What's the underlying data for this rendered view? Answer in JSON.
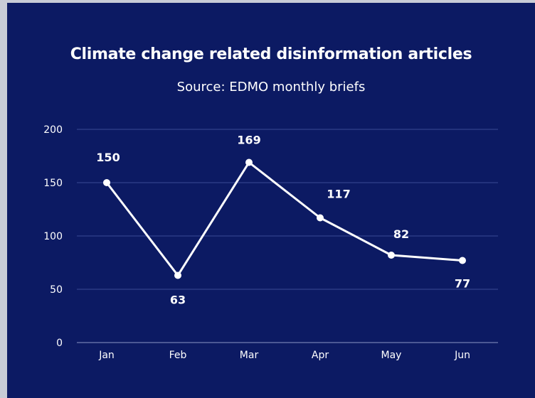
{
  "colors": {
    "background": "#0c1a63",
    "line": "#ffffff",
    "grid": "#3a4a96",
    "text": "#ffffff"
  },
  "chart_data": {
    "type": "line",
    "title": "Climate change related disinformation articles",
    "subtitle": "Source: EDMO monthly briefs",
    "categories": [
      "Jan",
      "Feb",
      "Mar",
      "Apr",
      "May",
      "Jun"
    ],
    "series": [
      {
        "values": [
          150,
          63,
          169,
          117,
          82,
          77
        ]
      }
    ],
    "data_labels": [
      "150",
      "63",
      "169",
      "117",
      "82",
      "77"
    ],
    "y_ticks": [
      "0",
      "50",
      "100",
      "150",
      "200"
    ],
    "y_tick_values": [
      0,
      50,
      100,
      150,
      200
    ],
    "ylim": [
      0,
      200
    ],
    "grid": true,
    "legend": "none"
  }
}
